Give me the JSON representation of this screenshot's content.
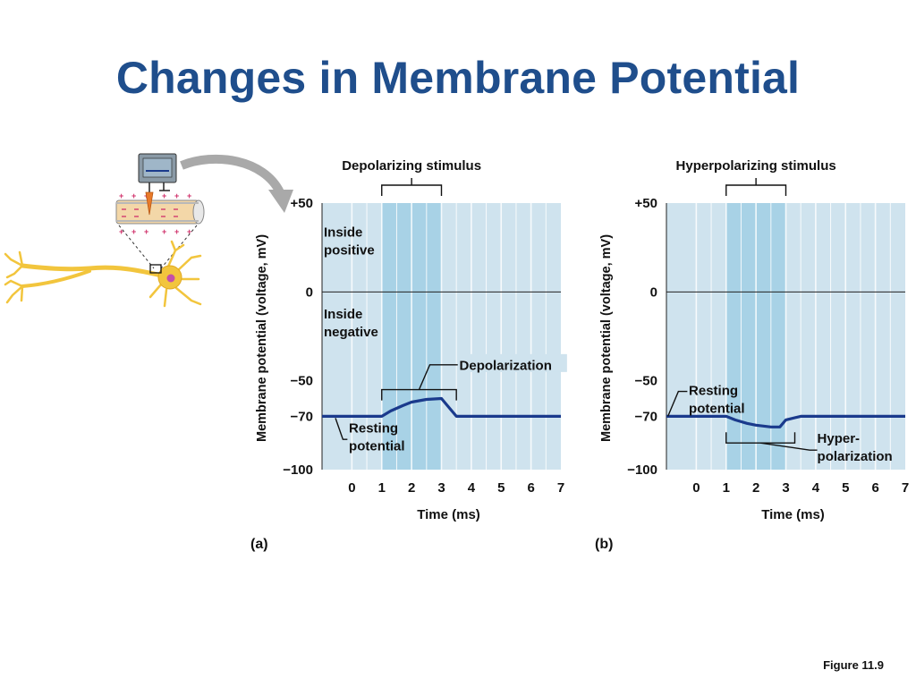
{
  "slide": {
    "title": "Changes in Membrane Potential",
    "figure_label": "Figure 11.9"
  },
  "colors": {
    "title": "#1f4e8c",
    "plot_bg": "#cfe3ee",
    "stimulus_band": "#a8d2e6",
    "trace": "#1a3a8c",
    "neuron": "#f2c53d"
  },
  "chart_data": [
    {
      "type": "line",
      "panel_label": "(a)",
      "stimulus_label": "Depolarizing stimulus",
      "xlabel": "Time (ms)",
      "ylabel": "Membrane potential (voltage, mV)",
      "xlim": [
        -1,
        7
      ],
      "ylim": [
        -100,
        50
      ],
      "x_ticks": [
        0,
        1,
        2,
        3,
        4,
        5,
        6,
        7
      ],
      "y_ticks": [
        {
          "value": 50,
          "label": "+50"
        },
        {
          "value": 0,
          "label": "0"
        },
        {
          "value": -50,
          "label": "−50"
        },
        {
          "value": -70,
          "label": "−70"
        },
        {
          "value": -100,
          "label": "−100"
        }
      ],
      "stimulus_range": [
        1,
        3
      ],
      "regions": [
        {
          "text": [
            "Inside",
            "positive"
          ]
        },
        {
          "text": [
            "Inside",
            "negative"
          ]
        }
      ],
      "annotations": [
        {
          "text": [
            "Depolarization"
          ],
          "span": [
            1,
            3.5
          ]
        },
        {
          "text": [
            "Resting",
            "potential"
          ]
        }
      ],
      "series": [
        {
          "x": [
            -1,
            0,
            0.5,
            1,
            1.3,
            1.7,
            2,
            2.5,
            3,
            3.2,
            3.5,
            4,
            5,
            6,
            7
          ],
          "y": [
            -70,
            -70,
            -70,
            -70,
            -67,
            -64,
            -62,
            -60.5,
            -60,
            -64,
            -70,
            -70,
            -70,
            -70,
            -70
          ]
        }
      ]
    },
    {
      "type": "line",
      "panel_label": "(b)",
      "stimulus_label": "Hyperpolarizing stimulus",
      "xlabel": "Time (ms)",
      "ylabel": "Membrane potential (voltage, mV)",
      "xlim": [
        -1,
        7
      ],
      "ylim": [
        -100,
        50
      ],
      "x_ticks": [
        0,
        1,
        2,
        3,
        4,
        5,
        6,
        7
      ],
      "y_ticks": [
        {
          "value": 50,
          "label": "+50"
        },
        {
          "value": 0,
          "label": "0"
        },
        {
          "value": -50,
          "label": "−50"
        },
        {
          "value": -70,
          "label": "−70"
        },
        {
          "value": -100,
          "label": "−100"
        }
      ],
      "stimulus_range": [
        1,
        3
      ],
      "regions": [],
      "annotations": [
        {
          "text": [
            "Resting",
            "potential"
          ]
        },
        {
          "text": [
            "Hyper-",
            "polarization"
          ],
          "span": [
            1,
            3.3
          ]
        }
      ],
      "series": [
        {
          "x": [
            -1,
            0,
            0.5,
            1,
            1.3,
            1.7,
            2,
            2.5,
            2.8,
            3,
            3.5,
            4,
            5,
            6,
            7
          ],
          "y": [
            -70,
            -70,
            -70,
            -70,
            -72,
            -74,
            -75,
            -76,
            -76,
            -72,
            -70,
            -70,
            -70,
            -70,
            -70
          ]
        }
      ]
    }
  ]
}
